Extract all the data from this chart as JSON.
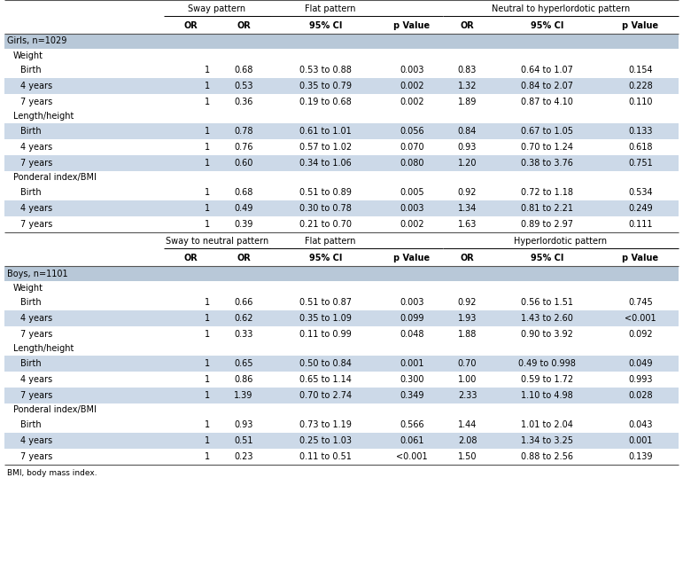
{
  "girls_section_label": "Girls, n=1029",
  "boys_section_label": "Boys, n=1101",
  "girls_header1": [
    "Sway pattern",
    "Flat pattern",
    "Neutral to hyperlordotic pattern"
  ],
  "boys_header1": [
    "Sway to neutral pattern",
    "Flat pattern",
    "Hyperlordotic pattern"
  ],
  "col_subheaders": [
    "OR",
    "OR",
    "95% CI",
    "p Value",
    "OR",
    "95% CI",
    "p Value"
  ],
  "girls_data": [
    [
      "Weight",
      "",
      "",
      "",
      "",
      "",
      "",
      ""
    ],
    [
      "Birth",
      "1",
      "0.68",
      "0.53 to 0.88",
      "0.003",
      "0.83",
      "0.64 to 1.07",
      "0.154"
    ],
    [
      "4 years",
      "1",
      "0.53",
      "0.35 to 0.79",
      "0.002",
      "1.32",
      "0.84 to 2.07",
      "0.228"
    ],
    [
      "7 years",
      "1",
      "0.36",
      "0.19 to 0.68",
      "0.002",
      "1.89",
      "0.87 to 4.10",
      "0.110"
    ],
    [
      "Length/height",
      "",
      "",
      "",
      "",
      "",
      "",
      ""
    ],
    [
      "Birth",
      "1",
      "0.78",
      "0.61 to 1.01",
      "0.056",
      "0.84",
      "0.67 to 1.05",
      "0.133"
    ],
    [
      "4 years",
      "1",
      "0.76",
      "0.57 to 1.02",
      "0.070",
      "0.93",
      "0.70 to 1.24",
      "0.618"
    ],
    [
      "7 years",
      "1",
      "0.60",
      "0.34 to 1.06",
      "0.080",
      "1.20",
      "0.38 to 3.76",
      "0.751"
    ],
    [
      "Ponderal index/BMI",
      "",
      "",
      "",
      "",
      "",
      "",
      ""
    ],
    [
      "Birth",
      "1",
      "0.68",
      "0.51 to 0.89",
      "0.005",
      "0.92",
      "0.72 to 1.18",
      "0.534"
    ],
    [
      "4 years",
      "1",
      "0.49",
      "0.30 to 0.78",
      "0.003",
      "1.34",
      "0.81 to 2.21",
      "0.249"
    ],
    [
      "7 years",
      "1",
      "0.39",
      "0.21 to 0.70",
      "0.002",
      "1.63",
      "0.89 to 2.97",
      "0.111"
    ]
  ],
  "boys_data": [
    [
      "Weight",
      "",
      "",
      "",
      "",
      "",
      "",
      ""
    ],
    [
      "Birth",
      "1",
      "0.66",
      "0.51 to 0.87",
      "0.003",
      "0.92",
      "0.56 to 1.51",
      "0.745"
    ],
    [
      "4 years",
      "1",
      "0.62",
      "0.35 to 1.09",
      "0.099",
      "1.93",
      "1.43 to 2.60",
      "<0.001"
    ],
    [
      "7 years",
      "1",
      "0.33",
      "0.11 to 0.99",
      "0.048",
      "1.88",
      "0.90 to 3.92",
      "0.092"
    ],
    [
      "Length/height",
      "",
      "",
      "",
      "",
      "",
      "",
      ""
    ],
    [
      "Birth",
      "1",
      "0.65",
      "0.50 to 0.84",
      "0.001",
      "0.70",
      "0.49 to 0.998",
      "0.049"
    ],
    [
      "4 years",
      "1",
      "0.86",
      "0.65 to 1.14",
      "0.300",
      "1.00",
      "0.59 to 1.72",
      "0.993"
    ],
    [
      "7 years",
      "1",
      "1.39",
      "0.70 to 2.74",
      "0.349",
      "2.33",
      "1.10 to 4.98",
      "0.028"
    ],
    [
      "Ponderal index/BMI",
      "",
      "",
      "",
      "",
      "",
      "",
      ""
    ],
    [
      "Birth",
      "1",
      "0.93",
      "0.73 to 1.19",
      "0.566",
      "1.44",
      "1.01 to 2.04",
      "0.043"
    ],
    [
      "4 years",
      "1",
      "0.51",
      "0.25 to 1.03",
      "0.061",
      "2.08",
      "1.34 to 3.25",
      "0.001"
    ],
    [
      "7 years",
      "1",
      "0.23",
      "0.11 to 0.51",
      "<0.001",
      "1.50",
      "0.88 to 2.56",
      "0.139"
    ]
  ],
  "footnote": "BMI, body mass index.",
  "white": "#ffffff",
  "blue_row": "#ccd9e8",
  "blue_section": "#b8c8d8",
  "font_size": 7.0
}
